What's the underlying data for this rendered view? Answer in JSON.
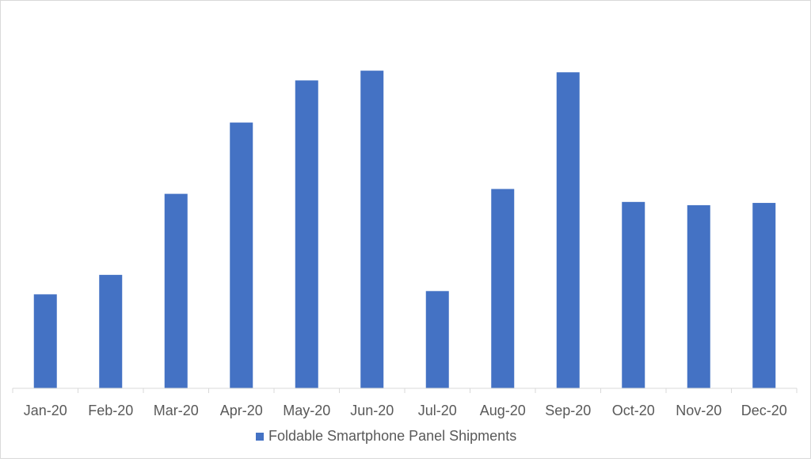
{
  "chart_data": {
    "type": "bar",
    "title": "",
    "xlabel": "",
    "ylabel": "",
    "categories": [
      "Jan-20",
      "Feb-20",
      "Mar-20",
      "Apr-20",
      "May-20",
      "Jun-20",
      "Jul-20",
      "Aug-20",
      "Sep-20",
      "Oct-20",
      "Nov-20",
      "Dec-20"
    ],
    "series": [
      {
        "name": "Foldable Smartphone Panel Shipments",
        "color": "#4472C4",
        "values": [
          29,
          35,
          60,
          82,
          95,
          98,
          30,
          61.5,
          97.5,
          57.5,
          56.5,
          57.2
        ]
      }
    ],
    "ylim": [
      0,
      100
    ],
    "grid": false,
    "y_axis_visible": false,
    "legend": "bottom"
  }
}
